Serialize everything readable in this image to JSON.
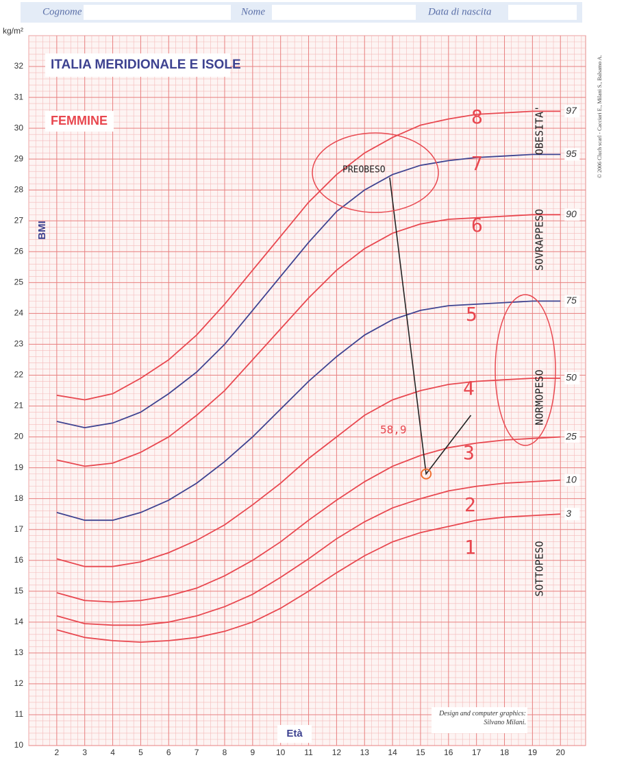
{
  "header": {
    "surname_label": "Cognome",
    "name_label": "Nome",
    "birth_label": "Data di nascita"
  },
  "chart_data": {
    "type": "line",
    "title": "ITALIA MERIDIONALE E ISOLE",
    "subtitle": "FEMMINE",
    "y_label": "BMI",
    "y_unit": "kg/m²",
    "x_label": "Età",
    "credit": "Design and computer graphics: Silvano Milani.",
    "copyright": "© 2006 Cluch scarl - Cacciari E., Milani S., Balsamo A.",
    "x": [
      2,
      3,
      4,
      5,
      6,
      7,
      8,
      9,
      10,
      11,
      12,
      13,
      14,
      15,
      16,
      17,
      18,
      19,
      20
    ],
    "xlim": [
      1,
      20.9
    ],
    "ylim": [
      10,
      33
    ],
    "xticks": [
      2,
      3,
      4,
      5,
      6,
      7,
      8,
      9,
      10,
      11,
      12,
      13,
      14,
      15,
      16,
      17,
      18,
      19,
      20
    ],
    "yticks": [
      10,
      11,
      12,
      13,
      14,
      15,
      16,
      17,
      18,
      19,
      20,
      21,
      22,
      23,
      24,
      25,
      26,
      27,
      28,
      29,
      30,
      31,
      32
    ],
    "grid": true,
    "series": [
      {
        "name": "97",
        "color": "#e8474f",
        "values": [
          21.35,
          21.2,
          21.4,
          21.9,
          22.5,
          23.3,
          24.3,
          25.4,
          26.5,
          27.6,
          28.5,
          29.2,
          29.7,
          30.1,
          30.3,
          30.45,
          30.5,
          30.55,
          30.55
        ]
      },
      {
        "name": "95",
        "color": "#3d4290",
        "values": [
          20.5,
          20.3,
          20.45,
          20.8,
          21.4,
          22.1,
          23.0,
          24.1,
          25.2,
          26.3,
          27.3,
          28.0,
          28.5,
          28.8,
          28.95,
          29.05,
          29.1,
          29.15,
          29.15
        ]
      },
      {
        "name": "90",
        "color": "#e8474f",
        "values": [
          19.25,
          19.05,
          19.15,
          19.5,
          20.0,
          20.7,
          21.5,
          22.5,
          23.5,
          24.5,
          25.4,
          26.1,
          26.6,
          26.9,
          27.05,
          27.1,
          27.15,
          27.2,
          27.2
        ]
      },
      {
        "name": "75",
        "color": "#3d4290",
        "values": [
          17.55,
          17.3,
          17.3,
          17.55,
          17.95,
          18.5,
          19.2,
          20.0,
          20.9,
          21.8,
          22.6,
          23.3,
          23.8,
          24.1,
          24.25,
          24.3,
          24.35,
          24.4,
          24.4
        ]
      },
      {
        "name": "50",
        "color": "#e8474f",
        "values": [
          16.05,
          15.8,
          15.8,
          15.95,
          16.25,
          16.65,
          17.15,
          17.8,
          18.5,
          19.3,
          20.0,
          20.7,
          21.2,
          21.5,
          21.7,
          21.8,
          21.85,
          21.9,
          21.9
        ]
      },
      {
        "name": "25",
        "color": "#e8474f",
        "values": [
          14.95,
          14.7,
          14.65,
          14.7,
          14.85,
          15.1,
          15.5,
          16.0,
          16.6,
          17.3,
          17.95,
          18.55,
          19.05,
          19.4,
          19.65,
          19.8,
          19.9,
          19.95,
          20.0
        ]
      },
      {
        "name": "10",
        "color": "#e8474f",
        "values": [
          14.2,
          13.95,
          13.9,
          13.9,
          14.0,
          14.2,
          14.5,
          14.9,
          15.45,
          16.05,
          16.7,
          17.25,
          17.7,
          18.0,
          18.25,
          18.4,
          18.5,
          18.55,
          18.6
        ]
      },
      {
        "name": "3",
        "color": "#e8474f",
        "values": [
          13.75,
          13.5,
          13.4,
          13.35,
          13.4,
          13.5,
          13.7,
          14.0,
          14.45,
          15.0,
          15.6,
          16.15,
          16.6,
          16.9,
          17.1,
          17.3,
          17.4,
          17.45,
          17.5
        ]
      }
    ],
    "patient_path": {
      "color": "#222",
      "x": [
        13.9,
        15.2,
        16.8
      ],
      "values": [
        28.4,
        18.8,
        20.7
      ]
    },
    "annotations": [
      {
        "text": "PREOBESO",
        "color": "#222"
      },
      {
        "text": "58,9",
        "color": "#e8474f"
      },
      {
        "text": "OBESITA'",
        "color": "#222"
      },
      {
        "text": "SOVRAPPESO",
        "color": "#222"
      },
      {
        "text": "NORMOPESO",
        "color": "#222"
      },
      {
        "text": "SOTTOPESO",
        "color": "#222"
      },
      {
        "text": "8",
        "color": "#e8474f"
      },
      {
        "text": "7",
        "color": "#e8474f"
      },
      {
        "text": "6",
        "color": "#e8474f"
      },
      {
        "text": "5",
        "color": "#e8474f"
      },
      {
        "text": "4",
        "color": "#e8474f"
      },
      {
        "text": "3",
        "color": "#e8474f"
      },
      {
        "text": "2",
        "color": "#e8474f"
      },
      {
        "text": "1",
        "color": "#e8474f"
      }
    ]
  }
}
